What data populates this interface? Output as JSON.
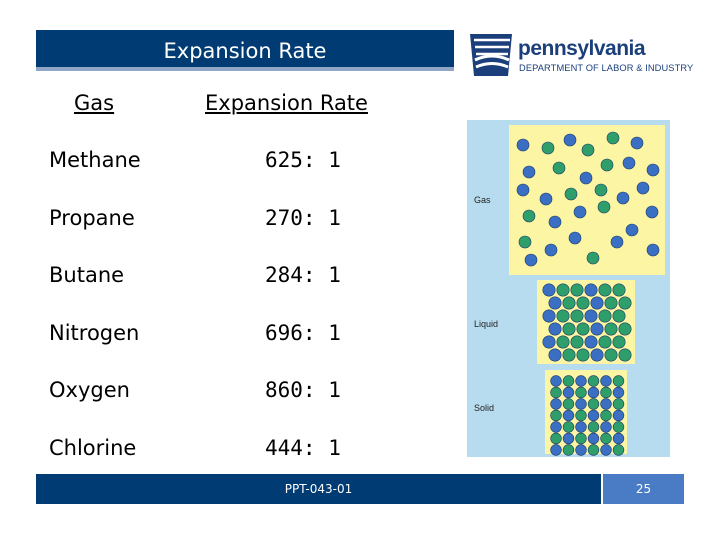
{
  "slide": {
    "title": "Expansion Rate",
    "logo": {
      "name": "pennsylvania",
      "subtitle": "DEPARTMENT OF LABOR & INDUSTRY"
    },
    "table": {
      "headers": [
        "Gas",
        "Expansion Rate"
      ],
      "rows": [
        {
          "gas": "Methane",
          "rate": "625: 1"
        },
        {
          "gas": "Propane",
          "rate": "270: 1"
        },
        {
          "gas": "Butane",
          "rate": "284: 1"
        },
        {
          "gas": "Nitrogen",
          "rate": "696: 1"
        },
        {
          "gas": "Oxygen",
          "rate": "860: 1"
        },
        {
          "gas": "Chlorine",
          "rate": "444: 1"
        }
      ]
    },
    "diagram": {
      "labels": [
        "Gas",
        "Liquid",
        "Solid"
      ],
      "colors": {
        "background": "#b7dcef",
        "box": "#fbf5a4",
        "blue_molecule": "#3b6fc4",
        "green_molecule": "#2e9e6b"
      }
    },
    "footer": {
      "code": "PPT-043-01",
      "page": "25"
    }
  }
}
